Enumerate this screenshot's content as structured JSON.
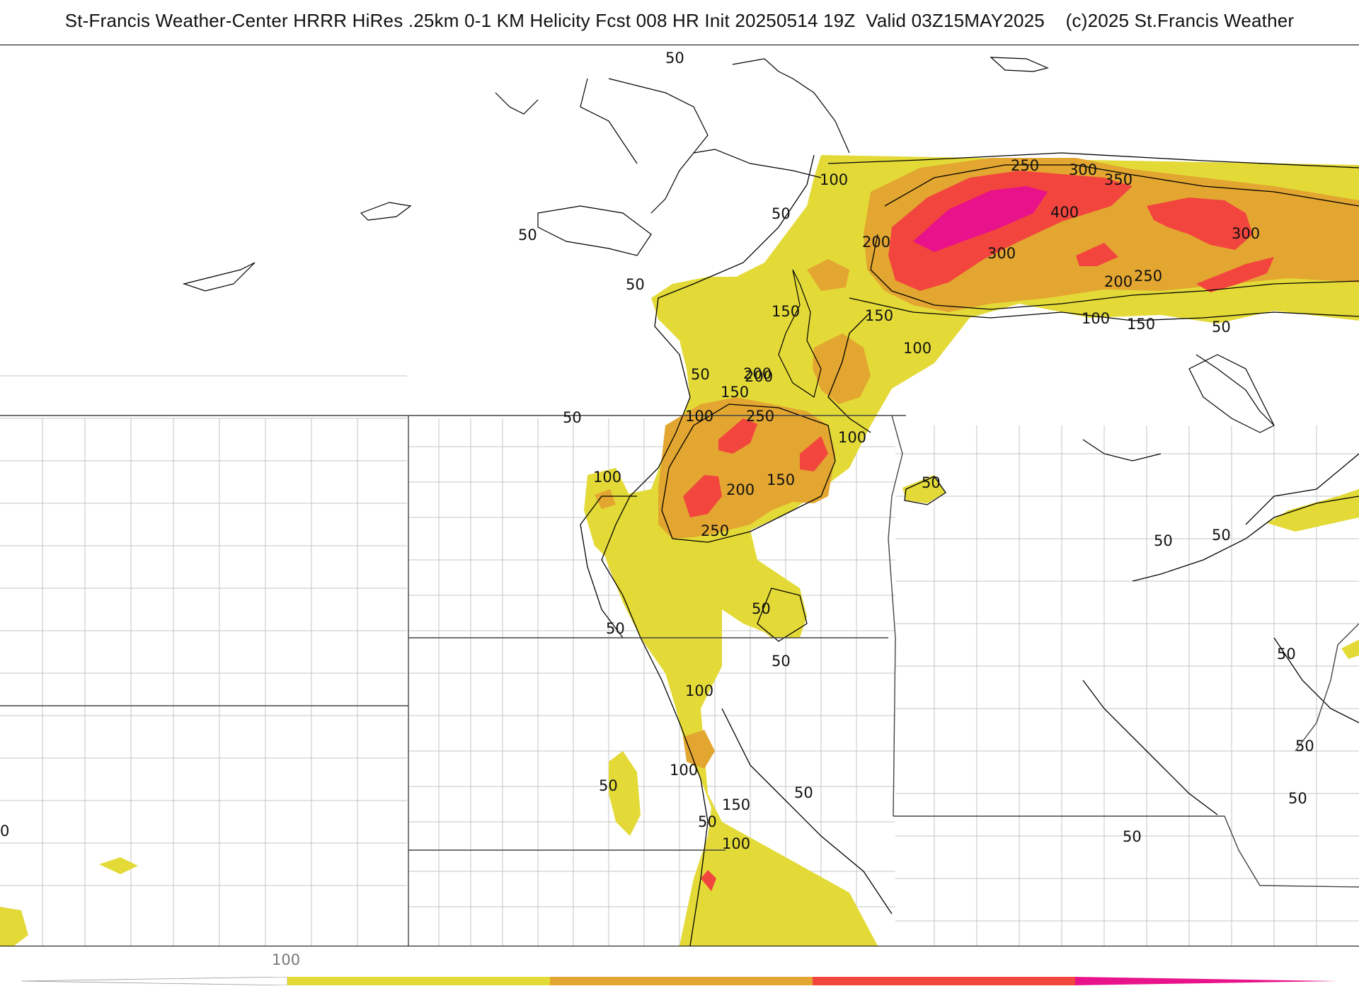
{
  "title": "St-Francis Weather-Center HRRR HiRes .25km 0-1 KM Helicity Fcst 008 HR Init 20250514 19Z  Valid 03Z15MAY2025    (c)2025 St.Francis Weather",
  "colors": {
    "background": "#ffffff",
    "c100": "#e3da38",
    "c200": "#e3a630",
    "c300": "#f2453e",
    "c400": "#e8128a",
    "contour": "#000000",
    "county_border": "#c4c4c4",
    "state_border": "#444444"
  },
  "colorbar": {
    "tick_labels": [
      "100"
    ],
    "bins": [
      {
        "from": 0,
        "to": 100,
        "color": "#ffffff"
      },
      {
        "from": 100,
        "to": 200,
        "color": "#e3da38"
      },
      {
        "from": 200,
        "to": 300,
        "color": "#e3a630"
      },
      {
        "from": 300,
        "to": 400,
        "color": "#f2453e"
      },
      {
        "from": 400,
        "to": 500,
        "color": "#e8128a"
      }
    ]
  },
  "contour_labels": [
    "50",
    "100",
    "50",
    "50",
    "50",
    "50",
    "50",
    "150",
    "200",
    "150",
    "100",
    "200",
    "250",
    "300",
    "350",
    "400",
    "300",
    "300",
    "200",
    "250",
    "100",
    "150",
    "50",
    "150",
    "200",
    "100",
    "250",
    "100",
    "150",
    "200",
    "250",
    "100",
    "50",
    "50",
    "100",
    "50",
    "100",
    "50",
    "50",
    "150",
    "50",
    "100",
    "50",
    "50",
    "50",
    "50",
    "50",
    "50",
    "50",
    "0"
  ]
}
